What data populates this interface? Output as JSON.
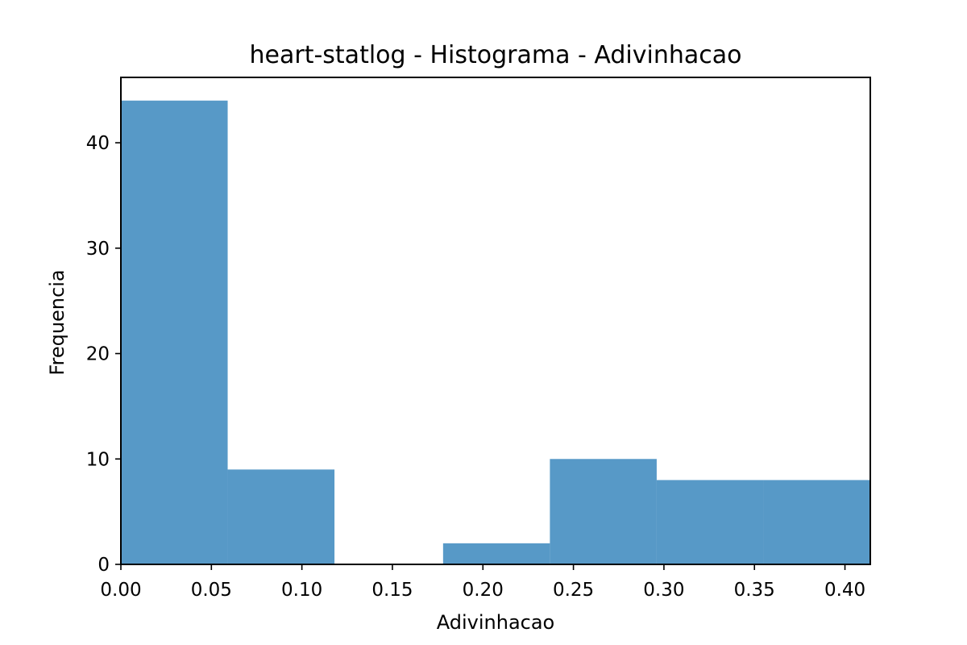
{
  "chart_data": {
    "type": "bar",
    "title": "heart-statlog - Histograma - Adivinhacao",
    "xlabel": "Adivinhacao",
    "ylabel": "Frequencia",
    "xlim": [
      0.0,
      0.414
    ],
    "ylim": [
      0,
      46.2
    ],
    "bar_color": "#5799c7",
    "bins": [
      {
        "x0": 0.0,
        "x1": 0.059,
        "value": 44
      },
      {
        "x0": 0.059,
        "x1": 0.118,
        "value": 9
      },
      {
        "x0": 0.118,
        "x1": 0.178,
        "value": 0
      },
      {
        "x0": 0.178,
        "x1": 0.237,
        "value": 2
      },
      {
        "x0": 0.237,
        "x1": 0.296,
        "value": 10
      },
      {
        "x0": 0.296,
        "x1": 0.355,
        "value": 8
      },
      {
        "x0": 0.355,
        "x1": 0.414,
        "value": 8
      }
    ],
    "xticks": [
      {
        "value": 0.0,
        "label": "0.00"
      },
      {
        "value": 0.05,
        "label": "0.05"
      },
      {
        "value": 0.1,
        "label": "0.10"
      },
      {
        "value": 0.15,
        "label": "0.15"
      },
      {
        "value": 0.2,
        "label": "0.20"
      },
      {
        "value": 0.25,
        "label": "0.25"
      },
      {
        "value": 0.3,
        "label": "0.30"
      },
      {
        "value": 0.35,
        "label": "0.35"
      },
      {
        "value": 0.4,
        "label": "0.40"
      }
    ],
    "yticks": [
      {
        "value": 0,
        "label": "0"
      },
      {
        "value": 10,
        "label": "10"
      },
      {
        "value": 20,
        "label": "20"
      },
      {
        "value": 30,
        "label": "30"
      },
      {
        "value": 40,
        "label": "40"
      }
    ],
    "grid": false,
    "legend": "none"
  }
}
